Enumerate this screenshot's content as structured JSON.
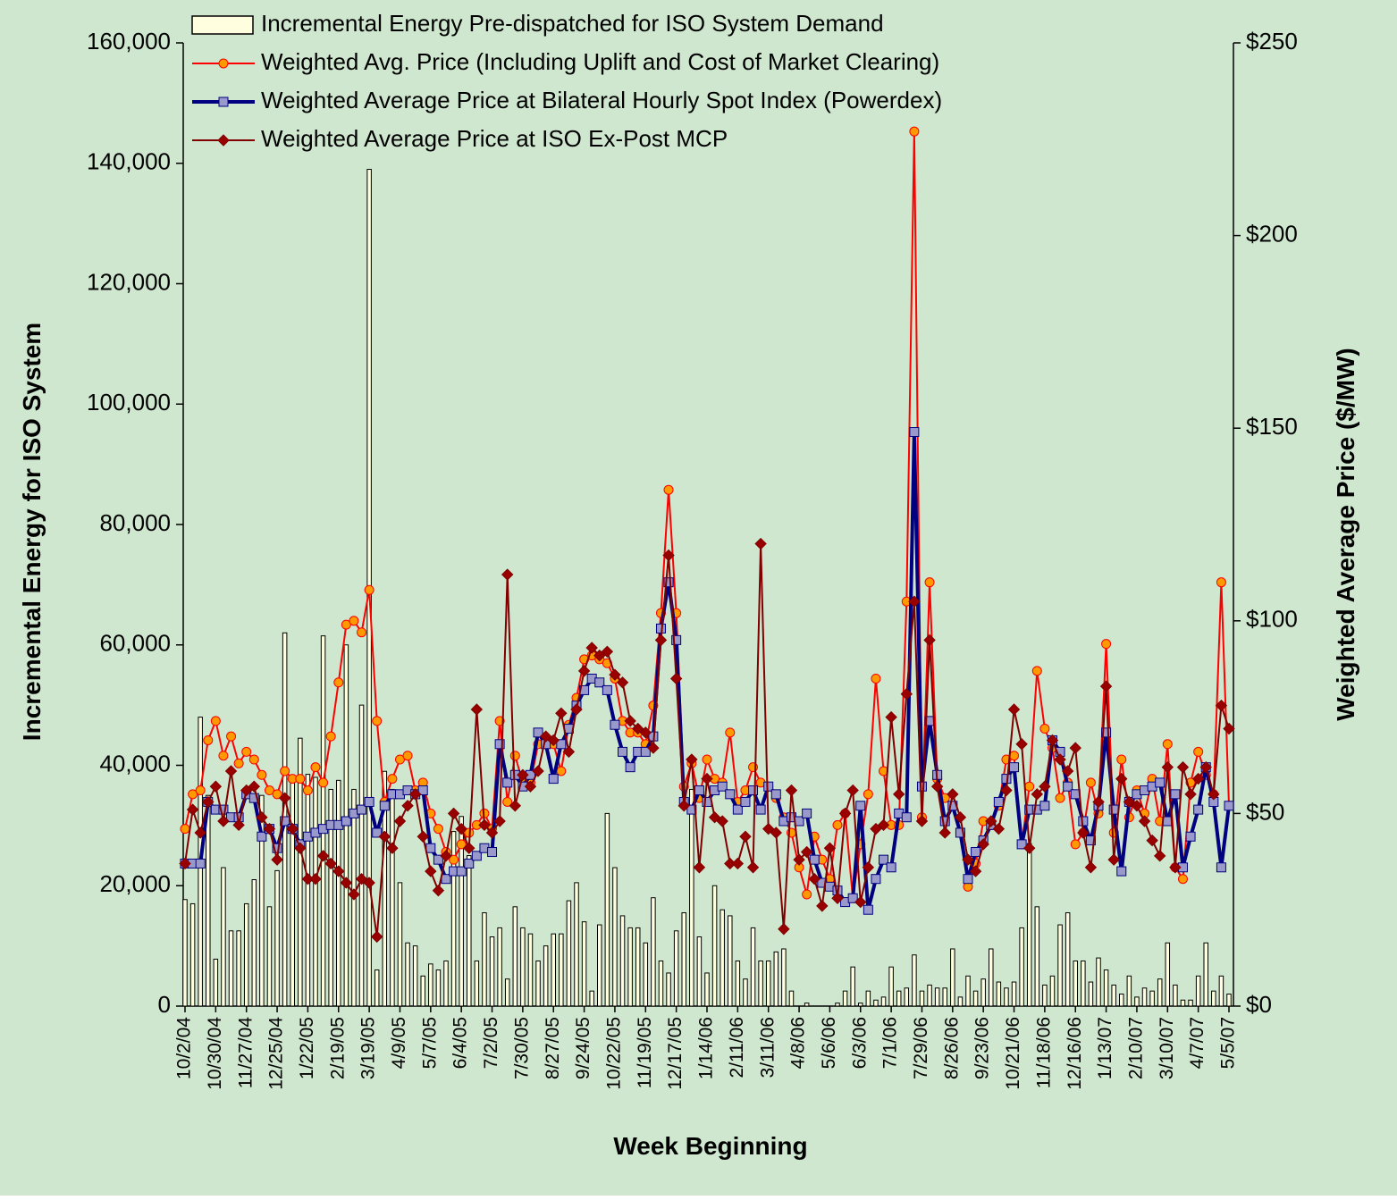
{
  "chart_data": {
    "type": "bar",
    "x_label": "Week Beginning",
    "y_label": "Incremental Energy for ISO System",
    "y2_label": "Weighted Average Price ($/MW)",
    "categories": [
      "10/2/04",
      null,
      null,
      null,
      "10/30/04",
      null,
      null,
      null,
      "11/27/04",
      null,
      null,
      null,
      "12/25/04",
      null,
      null,
      null,
      "1/22/05",
      null,
      null,
      null,
      "2/19/05",
      null,
      null,
      null,
      "3/19/05",
      null,
      null,
      null,
      "4/9/05",
      null,
      null,
      null,
      "5/7/05",
      null,
      null,
      null,
      "6/4/05",
      null,
      null,
      null,
      "7/2/05",
      null,
      null,
      null,
      "7/30/05",
      null,
      null,
      null,
      "8/27/05",
      null,
      null,
      null,
      "9/24/05",
      null,
      null,
      null,
      "10/22/05",
      null,
      null,
      null,
      "11/19/05",
      null,
      null,
      null,
      "12/17/05",
      null,
      null,
      null,
      "1/14/06",
      null,
      null,
      null,
      "2/11/06",
      null,
      null,
      null,
      "3/11/06",
      null,
      null,
      null,
      "4/8/06",
      null,
      null,
      null,
      "5/6/06",
      null,
      null,
      null,
      "6/3/06",
      null,
      null,
      null,
      "7/1/06",
      null,
      null,
      null,
      "7/29/06",
      null,
      null,
      null,
      "8/26/06",
      null,
      null,
      null,
      "9/23/06",
      null,
      null,
      null,
      "10/21/06",
      null,
      null,
      null,
      "11/18/06",
      null,
      null,
      null,
      "12/16/06",
      null,
      null,
      null,
      "1/13/07",
      null,
      null,
      null,
      "2/10/07",
      null,
      null,
      null,
      "3/10/07",
      null,
      null,
      null,
      "4/7/07",
      null,
      null,
      null,
      "5/5/07"
    ],
    "series": [
      {
        "name": "Incremental Energy Pre-dispatched for ISO System Demand",
        "type": "bar",
        "color": "#ffffe0",
        "values": [
          17700,
          17000,
          48000,
          35000,
          7800,
          23000,
          12500,
          12500,
          17000,
          21000,
          35000,
          16500,
          22500,
          62000,
          38000,
          44500,
          38500,
          38000,
          61500,
          36000,
          37500,
          60000,
          36000,
          50000,
          139000,
          6000,
          39000,
          36000,
          20500,
          10500,
          10000,
          5000,
          7000,
          6000,
          7500,
          29000,
          31500,
          25000,
          7500,
          15500,
          11500,
          13000,
          4500,
          16500,
          13000,
          12000,
          7500,
          10000,
          12000,
          12000,
          17500,
          20500,
          14000,
          2500,
          13500,
          32000,
          23000,
          15000,
          13000,
          13000,
          10500,
          18000,
          7500,
          5500,
          12500,
          15500,
          36000,
          11500,
          5500,
          20000,
          16000,
          15000,
          7500,
          4500,
          13000,
          7500,
          7500,
          9000,
          9500,
          2500,
          0,
          500,
          0,
          0,
          0,
          500,
          2500,
          6500,
          500,
          2500,
          1000,
          1500,
          6500,
          2500,
          3000,
          8500,
          2500,
          3500,
          3000,
          3000,
          9500,
          1500,
          5000,
          2500,
          4500,
          9500,
          4000,
          3000,
          4000,
          13000,
          27000,
          16500,
          3500,
          5000,
          13500,
          15500,
          7500,
          7500,
          4000,
          8000,
          6000,
          3500,
          2000,
          5000,
          1500,
          3000,
          2500,
          4500,
          10500,
          3500,
          1000,
          1000,
          5000,
          10500,
          2500,
          5000,
          2000
        ]
      },
      {
        "name": "Weighted Avg. Price (Including Uplift and Cost of Market Clearing)",
        "type": "line",
        "axis": "y2",
        "color": "#ff0000",
        "marker": "circle",
        "marker_color": "#ff9900",
        "values": [
          46,
          55,
          56,
          69,
          74,
          65,
          70,
          63,
          66,
          64,
          60,
          56,
          55,
          61,
          59,
          59,
          56,
          62,
          58,
          70,
          84,
          99,
          100,
          97,
          108,
          74,
          53,
          59,
          64,
          65,
          56,
          58,
          50,
          46,
          40,
          38,
          42,
          45,
          47,
          50,
          46,
          74,
          53,
          65,
          58,
          58,
          68,
          68,
          68,
          61,
          73,
          80,
          90,
          91,
          90,
          89,
          85,
          74,
          71,
          71,
          68,
          78,
          102,
          134,
          102,
          57,
          63,
          54,
          64,
          59,
          58,
          71,
          53,
          56,
          62,
          58,
          57,
          54,
          49,
          45,
          36,
          29,
          44,
          38,
          33,
          47,
          50,
          28,
          42,
          55,
          85,
          61,
          47,
          47,
          105,
          227,
          49,
          110,
          59,
          54,
          52,
          45,
          31,
          37,
          48,
          47,
          52,
          64,
          65,
          42,
          57,
          87,
          72,
          67,
          54,
          58,
          42,
          45,
          58,
          50,
          94,
          45,
          64,
          49,
          56,
          50,
          59,
          48,
          68,
          36,
          33,
          58,
          66,
          60,
          55,
          110,
          52
        ]
      },
      {
        "name": "Weighted Average Price at Bilateral Hourly Spot Index (Powerdex)",
        "type": "line",
        "axis": "y2",
        "color": "#000080",
        "marker": "square",
        "marker_color": "#9999cc",
        "values": [
          37,
          37,
          37,
          53,
          51,
          51,
          49,
          49,
          55,
          54,
          44,
          46,
          41,
          48,
          46,
          42,
          44,
          45,
          46,
          47,
          47,
          48,
          50,
          51,
          53,
          45,
          52,
          55,
          55,
          56,
          55,
          56,
          41,
          38,
          33,
          35,
          35,
          37,
          39,
          41,
          40,
          68,
          58,
          60,
          57,
          60,
          71,
          68,
          59,
          68,
          72,
          78,
          82,
          85,
          84,
          82,
          73,
          66,
          62,
          66,
          66,
          70,
          98,
          110,
          95,
          53,
          51,
          56,
          53,
          56,
          57,
          55,
          51,
          53,
          56,
          51,
          57,
          55,
          48,
          49,
          48,
          50,
          38,
          32,
          31,
          30,
          27,
          28,
          52,
          25,
          33,
          38,
          36,
          50,
          49,
          149,
          57,
          74,
          60,
          48,
          52,
          45,
          33,
          40,
          43,
          47,
          53,
          59,
          62,
          42,
          51,
          51,
          52,
          69,
          66,
          57,
          55,
          48,
          43,
          52,
          71,
          51,
          35,
          53,
          55,
          56,
          57,
          58,
          48,
          55,
          36,
          44,
          51,
          62,
          53,
          36,
          52
        ]
      },
      {
        "name": "Weighted Average Price at ISO Ex-Post MCP",
        "type": "line",
        "axis": "y2",
        "color": "#800000",
        "marker": "diamond",
        "marker_color": "#990000",
        "values": [
          37,
          51,
          45,
          53,
          57,
          48,
          61,
          47,
          56,
          57,
          49,
          46,
          38,
          54,
          46,
          41,
          33,
          33,
          39,
          37,
          35,
          32,
          29,
          33,
          32,
          18,
          44,
          41,
          48,
          52,
          55,
          44,
          35,
          30,
          39,
          50,
          46,
          41,
          77,
          47,
          45,
          48,
          112,
          52,
          60,
          57,
          61,
          70,
          69,
          76,
          66,
          77,
          87,
          93,
          91,
          92,
          86,
          84,
          74,
          72,
          71,
          67,
          95,
          117,
          85,
          52,
          64,
          36,
          59,
          49,
          48,
          37,
          37,
          44,
          36,
          120,
          46,
          45,
          20,
          56,
          38,
          40,
          33,
          26,
          41,
          28,
          50,
          56,
          27,
          36,
          46,
          47,
          75,
          55,
          81,
          105,
          48,
          95,
          57,
          45,
          55,
          49,
          38,
          35,
          42,
          48,
          46,
          56,
          77,
          68,
          41,
          55,
          57,
          69,
          64,
          61,
          67,
          45,
          36,
          53,
          83,
          38,
          59,
          53,
          52,
          48,
          43,
          39,
          62,
          36,
          62,
          55,
          59,
          62,
          55,
          78,
          72
        ]
      }
    ],
    "ylim": [
      0,
      160000
    ],
    "yticks": [
      0,
      {
        "value": 20000,
        "label": "20,000"
      },
      {
        "value": 40000,
        "label": "40,000"
      },
      {
        "value": 60000,
        "label": "60,000"
      },
      {
        "value": 80000,
        "label": "80,000"
      },
      {
        "value": 100000,
        "label": "100,000"
      },
      {
        "value": 120000,
        "label": "120,000"
      },
      {
        "value": 140000,
        "label": "140,000"
      },
      {
        "value": 160000,
        "label": "160,000"
      }
    ],
    "y2lim": [
      0,
      250
    ],
    "y2ticks": [
      {
        "value": 0,
        "label": "$0"
      },
      {
        "value": 50,
        "label": "$50"
      },
      {
        "value": 100,
        "label": "$100"
      },
      {
        "value": 150,
        "label": "$150"
      },
      {
        "value": 200,
        "label": "$200"
      },
      {
        "value": 250,
        "label": "$250"
      }
    ],
    "grid": false,
    "legend": "top-left",
    "background": "#cfe7cf"
  }
}
